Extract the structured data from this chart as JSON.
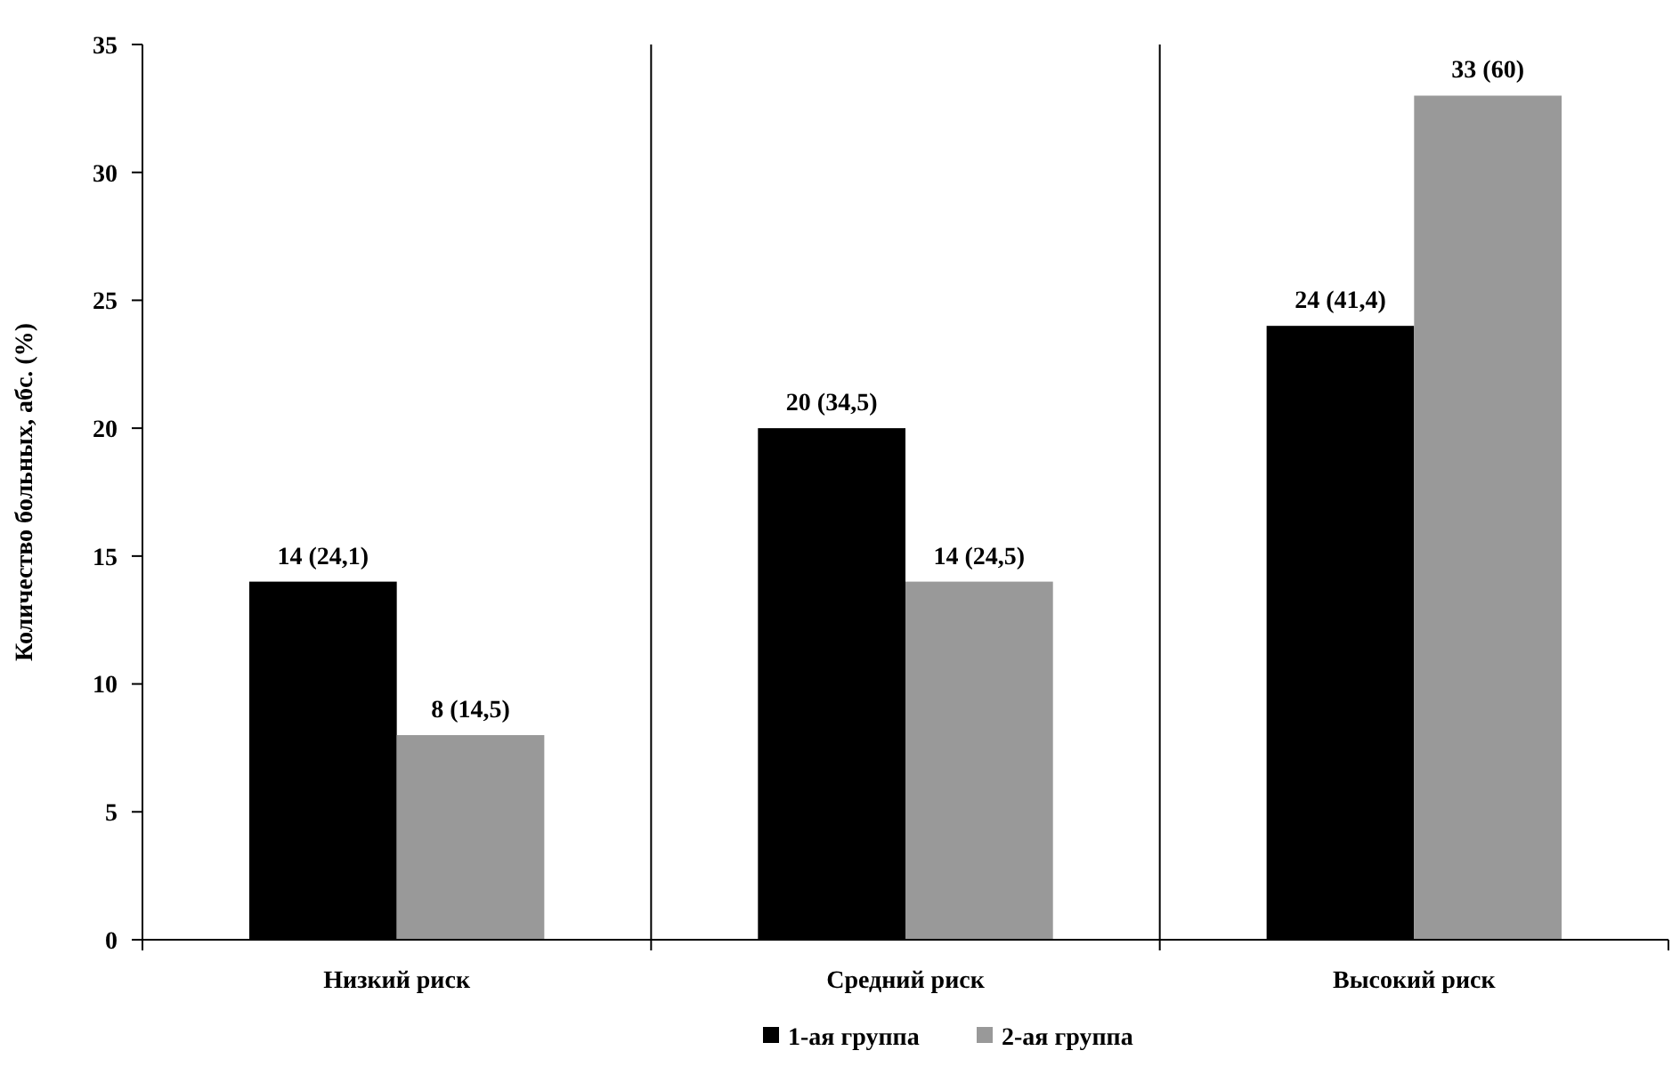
{
  "chart_data": {
    "type": "bar",
    "ylabel": "Количество больных, абс. (%)",
    "categories": [
      "Низкий риск",
      "Средний риск",
      "Высокий риск"
    ],
    "series": [
      {
        "name": "1-ая группа",
        "color": "#000000",
        "values": [
          14,
          20,
          24
        ],
        "value_labels": [
          "14 (24,1)",
          "20 (34,5)",
          "24 (41,4)"
        ]
      },
      {
        "name": "2-ая группа",
        "color": "#999999",
        "values": [
          8,
          14,
          33
        ],
        "value_labels": [
          "8 (14,5)",
          "14 (24,5)",
          "33 (60)"
        ]
      }
    ],
    "ylim": [
      0,
      35
    ],
    "yticks": [
      0,
      5,
      10,
      15,
      20,
      25,
      30,
      35
    ],
    "grid": "x",
    "legend": "bottom"
  }
}
